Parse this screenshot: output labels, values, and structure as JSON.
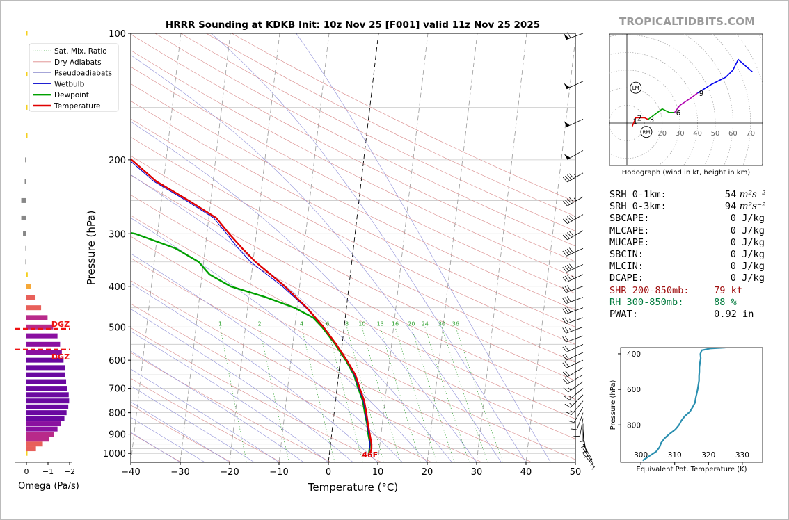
{
  "title": "HRRR Sounding at KDKB Init: 10z Nov 25 [F001] valid 11z Nov 25 2025",
  "brand": "TROPICALTIDBITS.COM",
  "colors": {
    "temperature": "#e00000",
    "dewpoint": "#00a000",
    "wetbulb": "#0000cc",
    "dgz": "#ee1111",
    "shr": "#a01010",
    "rh": "#007a3d"
  },
  "chart_data": [
    {
      "id": "skewt",
      "type": "line",
      "title": "HRRR Sounding at KDKB Init: 10z Nov 25 [F001] valid 11z Nov 25 2025",
      "xlabel": "Temperature (°C)",
      "ylabel": "Pressure (hPa)",
      "xlim": [
        -40,
        50
      ],
      "ylim": [
        1050,
        100
      ],
      "x_ticks": [
        "−40",
        "−30",
        "−20",
        "−10",
        "0",
        "10",
        "20",
        "30",
        "40",
        "50"
      ],
      "y_ticks": [
        "100",
        "200",
        "300",
        "400",
        "500",
        "600",
        "700",
        "800",
        "900",
        "1000"
      ],
      "surface_temp_label": "46F",
      "mixing_ratio_labels": [
        "1",
        "2",
        "4",
        "6",
        "8",
        "10",
        "13",
        "16",
        "20",
        "24",
        "30",
        "36"
      ],
      "legend": [
        {
          "label": "Sat. Mix. Ratio",
          "style": "dotted",
          "color": "#2ca02c"
        },
        {
          "label": "Dry Adiabats",
          "style": "solid",
          "color": "#d88"
        },
        {
          "label": "Pseudoadiabats",
          "style": "solid",
          "color": "#88c"
        },
        {
          "label": "Wetbulb",
          "style": "solid",
          "color": "#0000cc"
        },
        {
          "label": "Dewpoint",
          "style": "solid",
          "color": "#00a000"
        },
        {
          "label": "Temperature",
          "style": "solid",
          "color": "#e00000"
        }
      ],
      "series": [
        {
          "name": "Temperature",
          "points": [
            [
              1000,
              8.2
            ],
            [
              975,
              8.4
            ],
            [
              950,
              8.3
            ],
            [
              925,
              8.0
            ],
            [
              900,
              7.7
            ],
            [
              850,
              7.1
            ],
            [
              800,
              6.5
            ],
            [
              750,
              5.8
            ],
            [
              700,
              4.6
            ],
            [
              650,
              3.4
            ],
            [
              600,
              1.3
            ],
            [
              550,
              -1.2
            ],
            [
              500,
              -4.2
            ],
            [
              450,
              -8.0
            ],
            [
              400,
              -13.0
            ],
            [
              350,
              -19.5
            ],
            [
              325,
              -22.5
            ],
            [
              300,
              -25.5
            ],
            [
              275,
              -28.5
            ],
            [
              250,
              -34.5
            ],
            [
              225,
              -41.5
            ],
            [
              200,
              -47.0
            ],
            [
              175,
              -50.5
            ],
            [
              150,
              -56.5
            ],
            [
              125,
              -62.0
            ],
            [
              100,
              -67.0
            ]
          ]
        },
        {
          "name": "Wetbulb",
          "points": [
            [
              1000,
              8.0
            ],
            [
              950,
              8.0
            ],
            [
              900,
              7.5
            ],
            [
              850,
              6.9
            ],
            [
              800,
              6.3
            ],
            [
              750,
              5.6
            ],
            [
              700,
              4.4
            ],
            [
              650,
              3.2
            ],
            [
              600,
              1.2
            ],
            [
              550,
              -1.3
            ],
            [
              500,
              -4.3
            ],
            [
              450,
              -8.2
            ],
            [
              400,
              -13.5
            ],
            [
              350,
              -20.5
            ],
            [
              325,
              -23.3
            ],
            [
              300,
              -26.0
            ],
            [
              275,
              -29.0
            ],
            [
              250,
              -35.0
            ],
            [
              225,
              -42.0
            ],
            [
              200,
              -47.5
            ],
            [
              175,
              -50.8
            ],
            [
              150,
              -56.8
            ],
            [
              125,
              -62.2
            ],
            [
              100,
              -67.2
            ]
          ]
        },
        {
          "name": "Dewpoint",
          "points": [
            [
              1000,
              8.0
            ],
            [
              950,
              8.0
            ],
            [
              900,
              7.4
            ],
            [
              850,
              6.9
            ],
            [
              800,
              6.2
            ],
            [
              750,
              5.5
            ],
            [
              700,
              4.3
            ],
            [
              650,
              3.1
            ],
            [
              600,
              1.1
            ],
            [
              550,
              -1.4
            ],
            [
              500,
              -4.5
            ],
            [
              475,
              -6.5
            ],
            [
              450,
              -10.5
            ],
            [
              425,
              -16.5
            ],
            [
              400,
              -24.0
            ],
            [
              375,
              -28.5
            ],
            [
              350,
              -31.0
            ],
            [
              325,
              -36.0
            ],
            [
              300,
              -44.5
            ],
            [
              275,
              -62.0
            ],
            [
              250,
              -67.0
            ],
            [
              225,
              -73.0
            ],
            [
              200,
              -81.0
            ],
            [
              150,
              -95.0
            ],
            [
              125,
              -95.0
            ],
            [
              100,
              -95.0
            ]
          ]
        }
      ]
    },
    {
      "id": "omega",
      "type": "bar",
      "xlabel": "Omega (Pa/s)",
      "x_ticks": [
        "0",
        "−1",
        "−2"
      ],
      "dgz_label": "DGZ",
      "dgz_levels": [
        505,
        566
      ],
      "bars": [
        [
          1000,
          0.02
        ],
        [
          975,
          0.22
        ],
        [
          950,
          0.38
        ],
        [
          925,
          0.52
        ],
        [
          900,
          0.64
        ],
        [
          875,
          0.72
        ],
        [
          850,
          0.8
        ],
        [
          825,
          0.88
        ],
        [
          800,
          0.93
        ],
        [
          775,
          0.97
        ],
        [
          750,
          0.99
        ],
        [
          725,
          0.98
        ],
        [
          700,
          0.95
        ],
        [
          675,
          0.92
        ],
        [
          650,
          0.9
        ],
        [
          625,
          0.89
        ],
        [
          600,
          0.86
        ],
        [
          575,
          0.82
        ],
        [
          550,
          0.78
        ],
        [
          525,
          0.72
        ],
        [
          500,
          0.62
        ],
        [
          475,
          0.49
        ],
        [
          450,
          0.34
        ],
        [
          425,
          0.21
        ],
        [
          400,
          0.11
        ],
        [
          375,
          0.03
        ],
        [
          350,
          -0.01
        ],
        [
          325,
          -0.02
        ],
        [
          300,
          -0.08
        ],
        [
          275,
          -0.12
        ],
        [
          250,
          -0.12
        ],
        [
          225,
          -0.04
        ],
        [
          200,
          -0.03
        ],
        [
          175,
          0.0
        ],
        [
          150,
          0.02
        ],
        [
          125,
          0.02
        ],
        [
          100,
          0.01
        ]
      ]
    },
    {
      "id": "hodograph",
      "type": "line",
      "caption": "Hodograph (wind in kt, height in km)",
      "ring_labels": [
        "10",
        "20",
        "30",
        "40",
        "50",
        "60",
        "70"
      ],
      "markers": [
        "LM",
        "RM"
      ],
      "height_labels": [
        "1",
        "2",
        "3",
        "6",
        "9"
      ],
      "segments": [
        {
          "color": "#e00000",
          "points": [
            [
              3,
              -2
            ],
            [
              5,
              3
            ],
            [
              10,
              3
            ],
            [
              12,
              2
            ]
          ]
        },
        {
          "color": "#00a000",
          "points": [
            [
              12,
              2
            ],
            [
              16,
              5
            ],
            [
              20,
              8
            ],
            [
              24,
              6
            ],
            [
              27,
              6
            ]
          ]
        },
        {
          "color": "#b000b0",
          "points": [
            [
              27,
              6
            ],
            [
              30,
              10
            ],
            [
              36,
              14
            ],
            [
              40,
              17
            ]
          ]
        },
        {
          "color": "#0000ee",
          "points": [
            [
              40,
              17
            ],
            [
              48,
              22
            ],
            [
              56,
              26
            ],
            [
              60,
              30
            ],
            [
              63,
              36
            ],
            [
              71,
              29
            ]
          ]
        }
      ]
    },
    {
      "id": "theta_e",
      "type": "line",
      "xlabel": "Equivalent Pot. Temperature (K)",
      "ylabel": "Pressure (hPa)",
      "x_ticks": [
        "300",
        "310",
        "320",
        "330"
      ],
      "y_ticks": [
        "400",
        "600",
        "800"
      ],
      "xlim": [
        294,
        336
      ],
      "ylim": [
        1010,
        365
      ],
      "points": [
        [
          1000,
          300.5
        ],
        [
          975,
          302.5
        ],
        [
          950,
          304.5
        ],
        [
          925,
          305.5
        ],
        [
          900,
          306.0
        ],
        [
          875,
          307.0
        ],
        [
          850,
          308.5
        ],
        [
          825,
          310.2
        ],
        [
          800,
          311.3
        ],
        [
          775,
          312.0
        ],
        [
          750,
          313.0
        ],
        [
          725,
          314.5
        ],
        [
          700,
          315.3
        ],
        [
          675,
          316.0
        ],
        [
          650,
          316.2
        ],
        [
          625,
          316.5
        ],
        [
          600,
          316.8
        ],
        [
          575,
          317.0
        ],
        [
          550,
          317.2
        ],
        [
          525,
          317.2
        ],
        [
          500,
          317.3
        ],
        [
          475,
          317.3
        ],
        [
          450,
          317.5
        ],
        [
          425,
          317.7
        ],
        [
          400,
          317.6
        ],
        [
          380,
          318.0
        ],
        [
          370,
          320.5
        ],
        [
          365,
          325.0
        ]
      ]
    }
  ],
  "barbs": [
    [
      100,
      250,
      60
    ],
    [
      130,
      245,
      50
    ],
    [
      160,
      245,
      48
    ],
    [
      190,
      240,
      48
    ],
    [
      215,
      240,
      46
    ],
    [
      245,
      240,
      45
    ],
    [
      270,
      240,
      45
    ],
    [
      295,
      240,
      42
    ],
    [
      325,
      245,
      40
    ],
    [
      355,
      245,
      38
    ],
    [
      375,
      245,
      35
    ],
    [
      400,
      250,
      32
    ],
    [
      425,
      250,
      30
    ],
    [
      450,
      250,
      28
    ],
    [
      475,
      250,
      26
    ],
    [
      500,
      250,
      24
    ],
    [
      525,
      250,
      22
    ],
    [
      550,
      245,
      22
    ],
    [
      575,
      245,
      20
    ],
    [
      600,
      245,
      20
    ],
    [
      625,
      240,
      18
    ],
    [
      650,
      240,
      18
    ],
    [
      675,
      235,
      16
    ],
    [
      700,
      230,
      15
    ],
    [
      725,
      225,
      14
    ],
    [
      750,
      220,
      13
    ],
    [
      775,
      210,
      12
    ],
    [
      800,
      200,
      11
    ],
    [
      825,
      190,
      8
    ],
    [
      850,
      180,
      6
    ],
    [
      875,
      175,
      6
    ],
    [
      900,
      170,
      5
    ],
    [
      925,
      165,
      5
    ],
    [
      950,
      150,
      4
    ],
    [
      975,
      145,
      4
    ],
    [
      1000,
      140,
      3
    ]
  ],
  "stats": [
    {
      "label": "SRH 0-1km:",
      "value": "54",
      "unit": "m²s⁻²",
      "color": "#000"
    },
    {
      "label": "SRH 0-3km:",
      "value": "94",
      "unit": "m²s⁻²",
      "color": "#000"
    },
    {
      "label": "SBCAPE:",
      "value": "0",
      "unit": "J/kg",
      "color": "#000"
    },
    {
      "label": "MLCAPE:",
      "value": "0",
      "unit": "J/kg",
      "color": "#000"
    },
    {
      "label": "MUCAPE:",
      "value": "0",
      "unit": "J/kg",
      "color": "#000"
    },
    {
      "label": "SBCIN:",
      "value": "0",
      "unit": "J/kg",
      "color": "#000"
    },
    {
      "label": "MLCIN:",
      "value": "0",
      "unit": "J/kg",
      "color": "#000"
    },
    {
      "label": "DCAPE:",
      "value": "0",
      "unit": "J/kg",
      "color": "#000"
    },
    {
      "label": "SHR 200-850mb:",
      "value": "79",
      "unit": "kt",
      "color": "#a01010"
    },
    {
      "label": "RH 300-850mb:",
      "value": "88",
      "unit": "%",
      "color": "#007a3d"
    },
    {
      "label": "PWAT:",
      "value": "0.92",
      "unit": "in",
      "color": "#000"
    }
  ]
}
